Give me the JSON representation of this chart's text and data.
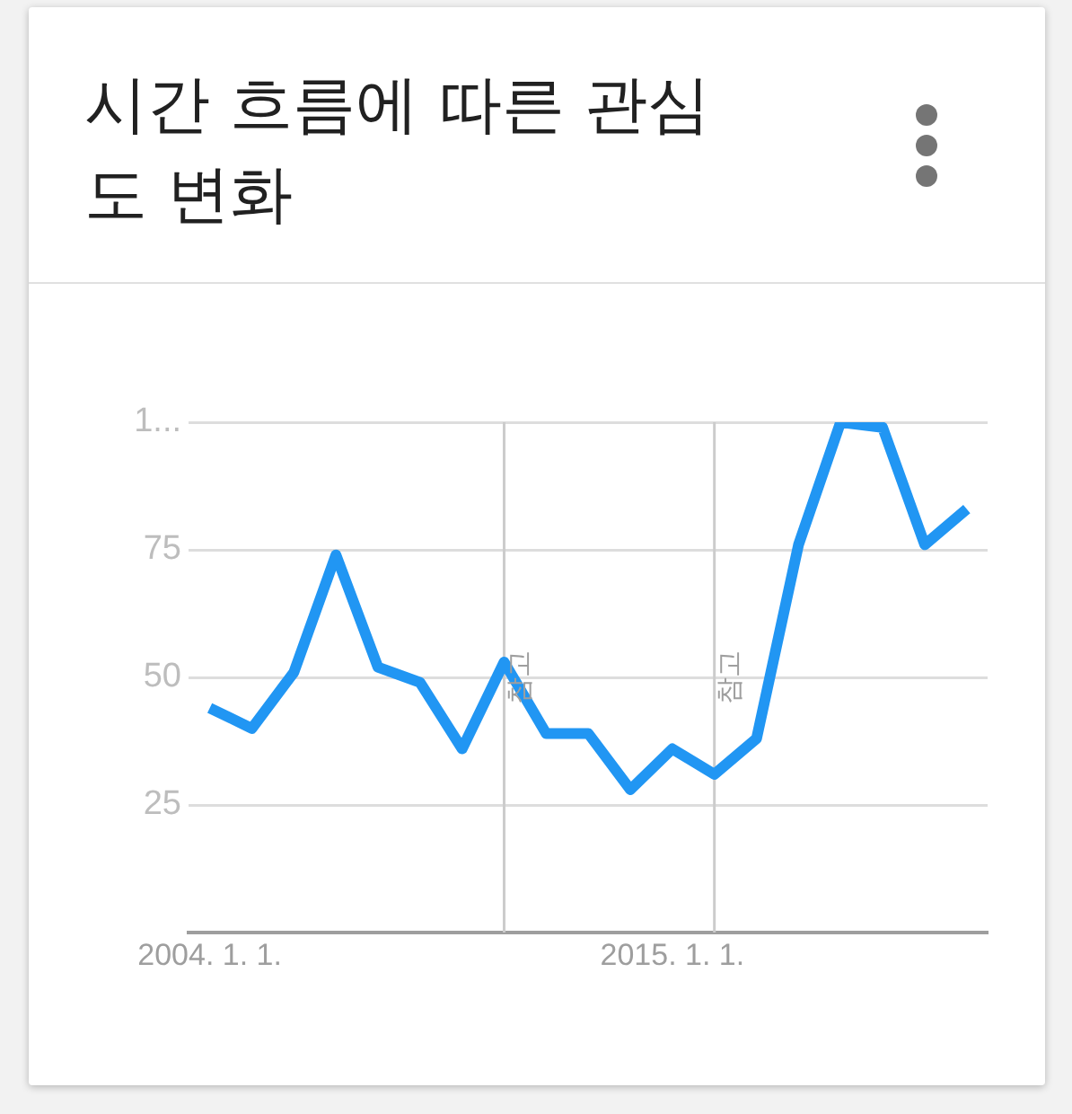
{
  "chart_data": {
    "type": "line",
    "title": "시간 흐름에 따른 관심도 변화",
    "x": [
      "2004-01-01",
      "2005-01-01",
      "2006-01-01",
      "2007-01-01",
      "2008-01-01",
      "2009-01-01",
      "2010-01-01",
      "2011-01-01",
      "2012-01-01",
      "2013-01-01",
      "2014-01-01",
      "2015-01-01",
      "2016-01-01",
      "2017-01-01",
      "2018-01-01",
      "2019-01-01",
      "2020-01-01",
      "2021-01-01",
      "2022-01-01"
    ],
    "series": [
      {
        "color": "#2196f3",
        "values": [
          44,
          40,
          51,
          74,
          52,
          49,
          36,
          53,
          39,
          39,
          28,
          36,
          31,
          38,
          76,
          100,
          99,
          76,
          83
        ]
      }
    ],
    "xlim": [
      "2003-07-01",
      "2022-07-01"
    ],
    "xticks": [
      {
        "value": "2004-01-01",
        "label": "2004. 1. 1."
      },
      {
        "value": "2015-01-01",
        "label": "2015. 1. 1."
      }
    ],
    "ylim": [
      0,
      100
    ],
    "yticks": [
      {
        "value": 0,
        "label": null
      },
      25,
      50,
      75,
      {
        "value": 100,
        "label": "1..."
      }
    ],
    "ref_lines": [
      {
        "axis": "x",
        "value": "2011-01-01",
        "label": "참고",
        "color": "#cccccc"
      },
      {
        "axis": "x",
        "value": "2016-01-01",
        "label": "참고",
        "color": "#cccccc"
      }
    ],
    "grid": "y",
    "legend": false,
    "marker": "none",
    "line_style": "solid"
  }
}
